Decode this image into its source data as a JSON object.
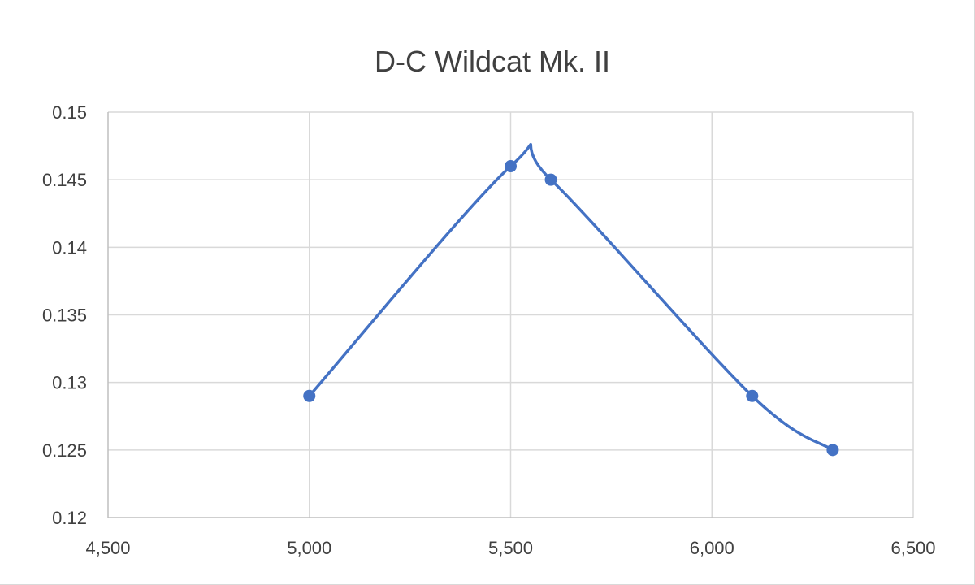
{
  "chart_data": {
    "type": "scatter",
    "title": "D-C Wildcat Mk. II",
    "xlabel": "",
    "ylabel": "",
    "xlim": [
      4500,
      6500
    ],
    "ylim": [
      0.12,
      0.15
    ],
    "x_ticks": [
      4500,
      5000,
      5500,
      6000,
      6500
    ],
    "x_tick_labels": [
      "4,500",
      "5,000",
      "5,500",
      "6,000",
      "6,500"
    ],
    "y_ticks": [
      0.12,
      0.125,
      0.13,
      0.135,
      0.14,
      0.145,
      0.15
    ],
    "y_tick_labels": [
      "0.12",
      "0.125",
      "0.13",
      "0.135",
      "0.14",
      "0.145",
      "0.15"
    ],
    "grid": true,
    "legend": "none",
    "smooth_line": true,
    "series": [
      {
        "color": "#4472C4",
        "x": [
          5000,
          5500,
          5600,
          6100,
          6300
        ],
        "y": [
          0.129,
          0.146,
          0.145,
          0.129,
          0.125
        ]
      }
    ]
  }
}
